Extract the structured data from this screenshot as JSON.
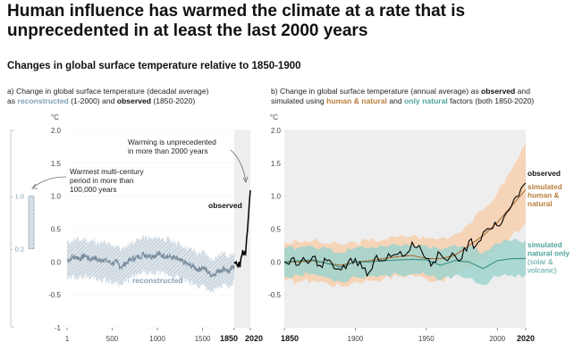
{
  "title": "Human influence has warmed the climate at a rate that is unprecedented in at least the last 2000 years",
  "subtitle": "Changes in global surface temperature relative to 1850-1900",
  "colors": {
    "reconstructed": "#7b8e9e",
    "reconstructed_band": "#c5d1da",
    "observed": "#000000",
    "human_natural": "#a86c2e",
    "human_natural_band": "#f6cfae",
    "natural": "#3b8f87",
    "natural_band": "#9fd3cc",
    "grid": "#dddddd",
    "shade": "#eeeeee"
  },
  "panel_a": {
    "caption_prefix": "a) Change in global surface temperature (decadal average)",
    "caption_as": "as",
    "caption_reconstructed": "reconstructed",
    "caption_mid": "(1-2000) and",
    "caption_observed": "observed",
    "caption_end": "(1850-2020)",
    "unit": "°C",
    "annotation_warming_1": "Warming is unprecedented",
    "annotation_warming_2": "in more than 2000 years",
    "annotation_century_1": "Warmest multi-century",
    "annotation_century_2": "period in more than",
    "annotation_century_3": "100,000 years",
    "label_observed": "observed",
    "label_reconstructed": "reconstructed",
    "range_bar_high": "1.0",
    "range_bar_low": "0.2",
    "x_ticks": [
      "1",
      "500",
      "1000",
      "1500",
      "1850",
      "2020"
    ],
    "y_ticks": [
      "2.0",
      "1.5",
      "1.0",
      "0.5",
      "0.0",
      "-0.5",
      "-1"
    ]
  },
  "panel_b": {
    "caption_prefix": "b) Change in global surface temperature (annual average) as",
    "caption_observed": "observed",
    "caption_and": "and",
    "caption_line2_start": "simulated using",
    "caption_hn": "human & natural",
    "caption_and2": "and",
    "caption_nat": "only natural",
    "caption_end": "factors (both 1850-2020)",
    "unit": "°C",
    "label_observed": "observed",
    "label_hn_1": "simulated",
    "label_hn_2": "human &",
    "label_hn_3": "natural",
    "label_nat_1": "simulated",
    "label_nat_2": "natural only",
    "label_nat_3": "(solar &",
    "label_nat_4": "volcanic)",
    "x_ticks": [
      "1850",
      "1900",
      "1950",
      "2000",
      "2020"
    ],
    "y_ticks": [
      "2.0",
      "1.5",
      "1.0",
      "0.5",
      "0.0",
      "-0.5"
    ]
  },
  "chart_data": [
    {
      "type": "line",
      "panel": "a",
      "xlim": [
        1,
        2020
      ],
      "ylim": [
        -1,
        2
      ],
      "xlabel": "",
      "ylabel": "°C",
      "series": [
        {
          "name": "reconstructed",
          "x": [
            1,
            50,
            100,
            150,
            200,
            250,
            300,
            350,
            400,
            450,
            500,
            550,
            600,
            650,
            700,
            750,
            800,
            850,
            900,
            950,
            1000,
            1050,
            1100,
            1150,
            1200,
            1250,
            1300,
            1350,
            1400,
            1450,
            1500,
            1550,
            1600,
            1650,
            1700,
            1750,
            1800,
            1850
          ],
          "values": [
            0.02,
            0.06,
            0.08,
            0.05,
            0.1,
            0.04,
            0.07,
            0.02,
            0.04,
            0.01,
            -0.02,
            0.0,
            -0.08,
            -0.02,
            0.03,
            0.06,
            0.08,
            0.12,
            0.1,
            0.09,
            0.12,
            0.1,
            0.09,
            0.07,
            0.05,
            0.02,
            -0.01,
            -0.05,
            -0.07,
            -0.12,
            -0.08,
            -0.14,
            -0.2,
            -0.16,
            -0.12,
            -0.1,
            -0.15,
            -0.05
          ],
          "upper": [
            0.3,
            0.32,
            0.35,
            0.32,
            0.36,
            0.31,
            0.33,
            0.28,
            0.3,
            0.27,
            0.24,
            0.26,
            0.18,
            0.24,
            0.29,
            0.32,
            0.34,
            0.38,
            0.36,
            0.35,
            0.38,
            0.36,
            0.35,
            0.32,
            0.3,
            0.27,
            0.24,
            0.2,
            0.18,
            0.12,
            0.16,
            0.1,
            0.04,
            0.08,
            0.12,
            0.14,
            0.09,
            0.15
          ],
          "lower": [
            -0.28,
            -0.24,
            -0.22,
            -0.25,
            -0.2,
            -0.26,
            -0.22,
            -0.28,
            -0.26,
            -0.3,
            -0.32,
            -0.3,
            -0.36,
            -0.3,
            -0.26,
            -0.22,
            -0.2,
            -0.16,
            -0.18,
            -0.19,
            -0.16,
            -0.18,
            -0.19,
            -0.21,
            -0.23,
            -0.26,
            -0.28,
            -0.32,
            -0.34,
            -0.38,
            -0.34,
            -0.4,
            -0.46,
            -0.42,
            -0.38,
            -0.36,
            -0.4,
            -0.28
          ]
        },
        {
          "name": "observed",
          "x": [
            1850,
            1860,
            1870,
            1880,
            1890,
            1900,
            1910,
            1920,
            1930,
            1940,
            1950,
            1960,
            1970,
            1980,
            1990,
            2000,
            2010,
            2020
          ],
          "values": [
            0.0,
            -0.02,
            0.0,
            -0.05,
            -0.07,
            0.0,
            -0.08,
            0.05,
            0.1,
            0.18,
            0.1,
            0.15,
            0.12,
            0.35,
            0.48,
            0.7,
            0.9,
            1.09
          ]
        }
      ],
      "range_bar": {
        "low": 0.2,
        "high": 1.0
      }
    },
    {
      "type": "line",
      "panel": "b",
      "xlim": [
        1850,
        2020
      ],
      "ylim": [
        -0.5,
        2
      ],
      "xlabel": "",
      "ylabel": "°C",
      "series": [
        {
          "name": "observed",
          "x": [
            1850,
            1855,
            1860,
            1865,
            1870,
            1875,
            1880,
            1885,
            1890,
            1895,
            1900,
            1905,
            1910,
            1915,
            1920,
            1925,
            1930,
            1935,
            1940,
            1945,
            1950,
            1955,
            1960,
            1965,
            1970,
            1975,
            1980,
            1985,
            1990,
            1995,
            2000,
            2005,
            2010,
            2015,
            2020
          ],
          "values": [
            0.0,
            0.05,
            -0.05,
            0.02,
            0.08,
            -0.05,
            0.02,
            -0.1,
            -0.12,
            0.0,
            0.05,
            -0.1,
            -0.15,
            0.1,
            0.02,
            0.08,
            0.12,
            0.1,
            0.3,
            0.25,
            0.05,
            0.0,
            0.12,
            0.02,
            0.1,
            0.05,
            0.32,
            0.25,
            0.45,
            0.5,
            0.55,
            0.7,
            0.85,
            1.0,
            1.2
          ]
        },
        {
          "name": "simulated human & natural",
          "x": [
            1850,
            1860,
            1870,
            1880,
            1890,
            1900,
            1910,
            1920,
            1930,
            1940,
            1950,
            1960,
            1970,
            1980,
            1990,
            2000,
            2010,
            2020
          ],
          "values": [
            0.0,
            0.0,
            0.02,
            -0.02,
            -0.05,
            0.0,
            0.02,
            0.05,
            0.08,
            0.1,
            0.05,
            0.05,
            0.1,
            0.25,
            0.4,
            0.6,
            0.85,
            1.1
          ],
          "upper": [
            0.3,
            0.3,
            0.32,
            0.28,
            0.26,
            0.3,
            0.32,
            0.35,
            0.38,
            0.4,
            0.36,
            0.36,
            0.42,
            0.58,
            0.78,
            1.05,
            1.4,
            1.8
          ],
          "lower": [
            -0.3,
            -0.3,
            -0.28,
            -0.32,
            -0.38,
            -0.3,
            -0.28,
            -0.25,
            -0.22,
            -0.2,
            -0.26,
            -0.28,
            -0.2,
            -0.08,
            0.05,
            0.2,
            0.4,
            0.6
          ]
        },
        {
          "name": "simulated natural only (solar & volcanic)",
          "x": [
            1850,
            1860,
            1870,
            1880,
            1890,
            1900,
            1910,
            1920,
            1930,
            1940,
            1950,
            1960,
            1970,
            1980,
            1990,
            2000,
            2010,
            2020
          ],
          "values": [
            0.0,
            0.02,
            0.03,
            -0.02,
            -0.08,
            0.0,
            0.0,
            0.02,
            0.03,
            0.04,
            0.03,
            -0.05,
            0.02,
            0.0,
            -0.1,
            0.02,
            0.05,
            0.05
          ],
          "upper": [
            0.2,
            0.22,
            0.24,
            0.2,
            0.14,
            0.22,
            0.22,
            0.24,
            0.25,
            0.26,
            0.25,
            0.18,
            0.26,
            0.24,
            0.14,
            0.28,
            0.32,
            0.32
          ],
          "lower": [
            -0.22,
            -0.2,
            -0.18,
            -0.24,
            -0.3,
            -0.22,
            -0.22,
            -0.2,
            -0.19,
            -0.18,
            -0.2,
            -0.28,
            -0.2,
            -0.24,
            -0.35,
            -0.22,
            -0.2,
            -0.2
          ]
        }
      ]
    }
  ]
}
